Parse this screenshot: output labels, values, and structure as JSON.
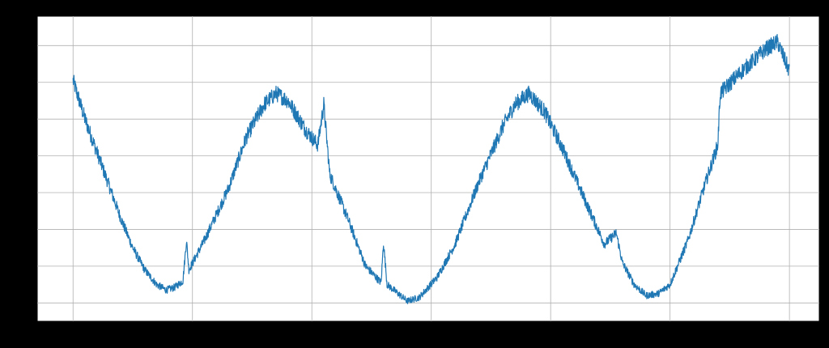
{
  "chart_data": {
    "type": "line",
    "title": "",
    "xlabel": "",
    "ylabel": "",
    "x_range": [
      0,
      6
    ],
    "y_range": [
      0,
      8.3
    ],
    "x_ticks": [
      0,
      1,
      2,
      3,
      4,
      5,
      6
    ],
    "y_ticks": [
      0.5,
      1.5,
      2.5,
      3.5,
      4.5,
      5.5,
      6.5,
      7.5
    ],
    "grid": true,
    "legend": "none",
    "series": [
      {
        "color": "#1f77b4",
        "noise_amplitude": 0.22,
        "points": [
          [
            0.0,
            6.55
          ],
          [
            0.1,
            5.5
          ],
          [
            0.2,
            4.6
          ],
          [
            0.3,
            3.7
          ],
          [
            0.4,
            2.8
          ],
          [
            0.5,
            2.0
          ],
          [
            0.6,
            1.4
          ],
          [
            0.7,
            1.0
          ],
          [
            0.78,
            0.85
          ],
          [
            0.85,
            0.92
          ],
          [
            0.92,
            1.1
          ],
          [
            0.95,
            2.2
          ],
          [
            0.97,
            1.4
          ],
          [
            1.1,
            2.2
          ],
          [
            1.3,
            3.6
          ],
          [
            1.45,
            5.0
          ],
          [
            1.6,
            5.9
          ],
          [
            1.7,
            6.2
          ],
          [
            1.8,
            6.0
          ],
          [
            1.95,
            5.2
          ],
          [
            2.05,
            4.8
          ],
          [
            2.1,
            5.9
          ],
          [
            2.15,
            4.0
          ],
          [
            2.3,
            2.8
          ],
          [
            2.45,
            1.5
          ],
          [
            2.58,
            1.05
          ],
          [
            2.6,
            2.15
          ],
          [
            2.63,
            1.0
          ],
          [
            2.8,
            0.55
          ],
          [
            2.9,
            0.65
          ],
          [
            3.05,
            1.2
          ],
          [
            3.2,
            2.1
          ],
          [
            3.4,
            3.8
          ],
          [
            3.6,
            5.3
          ],
          [
            3.7,
            5.9
          ],
          [
            3.82,
            6.2
          ],
          [
            3.95,
            5.7
          ],
          [
            4.1,
            4.7
          ],
          [
            4.3,
            3.2
          ],
          [
            4.45,
            2.1
          ],
          [
            4.55,
            2.4
          ],
          [
            4.6,
            1.6
          ],
          [
            4.7,
            1.0
          ],
          [
            4.8,
            0.7
          ],
          [
            4.9,
            0.75
          ],
          [
            5.0,
            1.0
          ],
          [
            5.15,
            2.2
          ],
          [
            5.3,
            3.8
          ],
          [
            5.4,
            4.8
          ],
          [
            5.42,
            6.2
          ],
          [
            5.6,
            6.8
          ],
          [
            5.8,
            7.4
          ],
          [
            5.9,
            7.6
          ],
          [
            6.0,
            6.8
          ]
        ]
      }
    ]
  }
}
